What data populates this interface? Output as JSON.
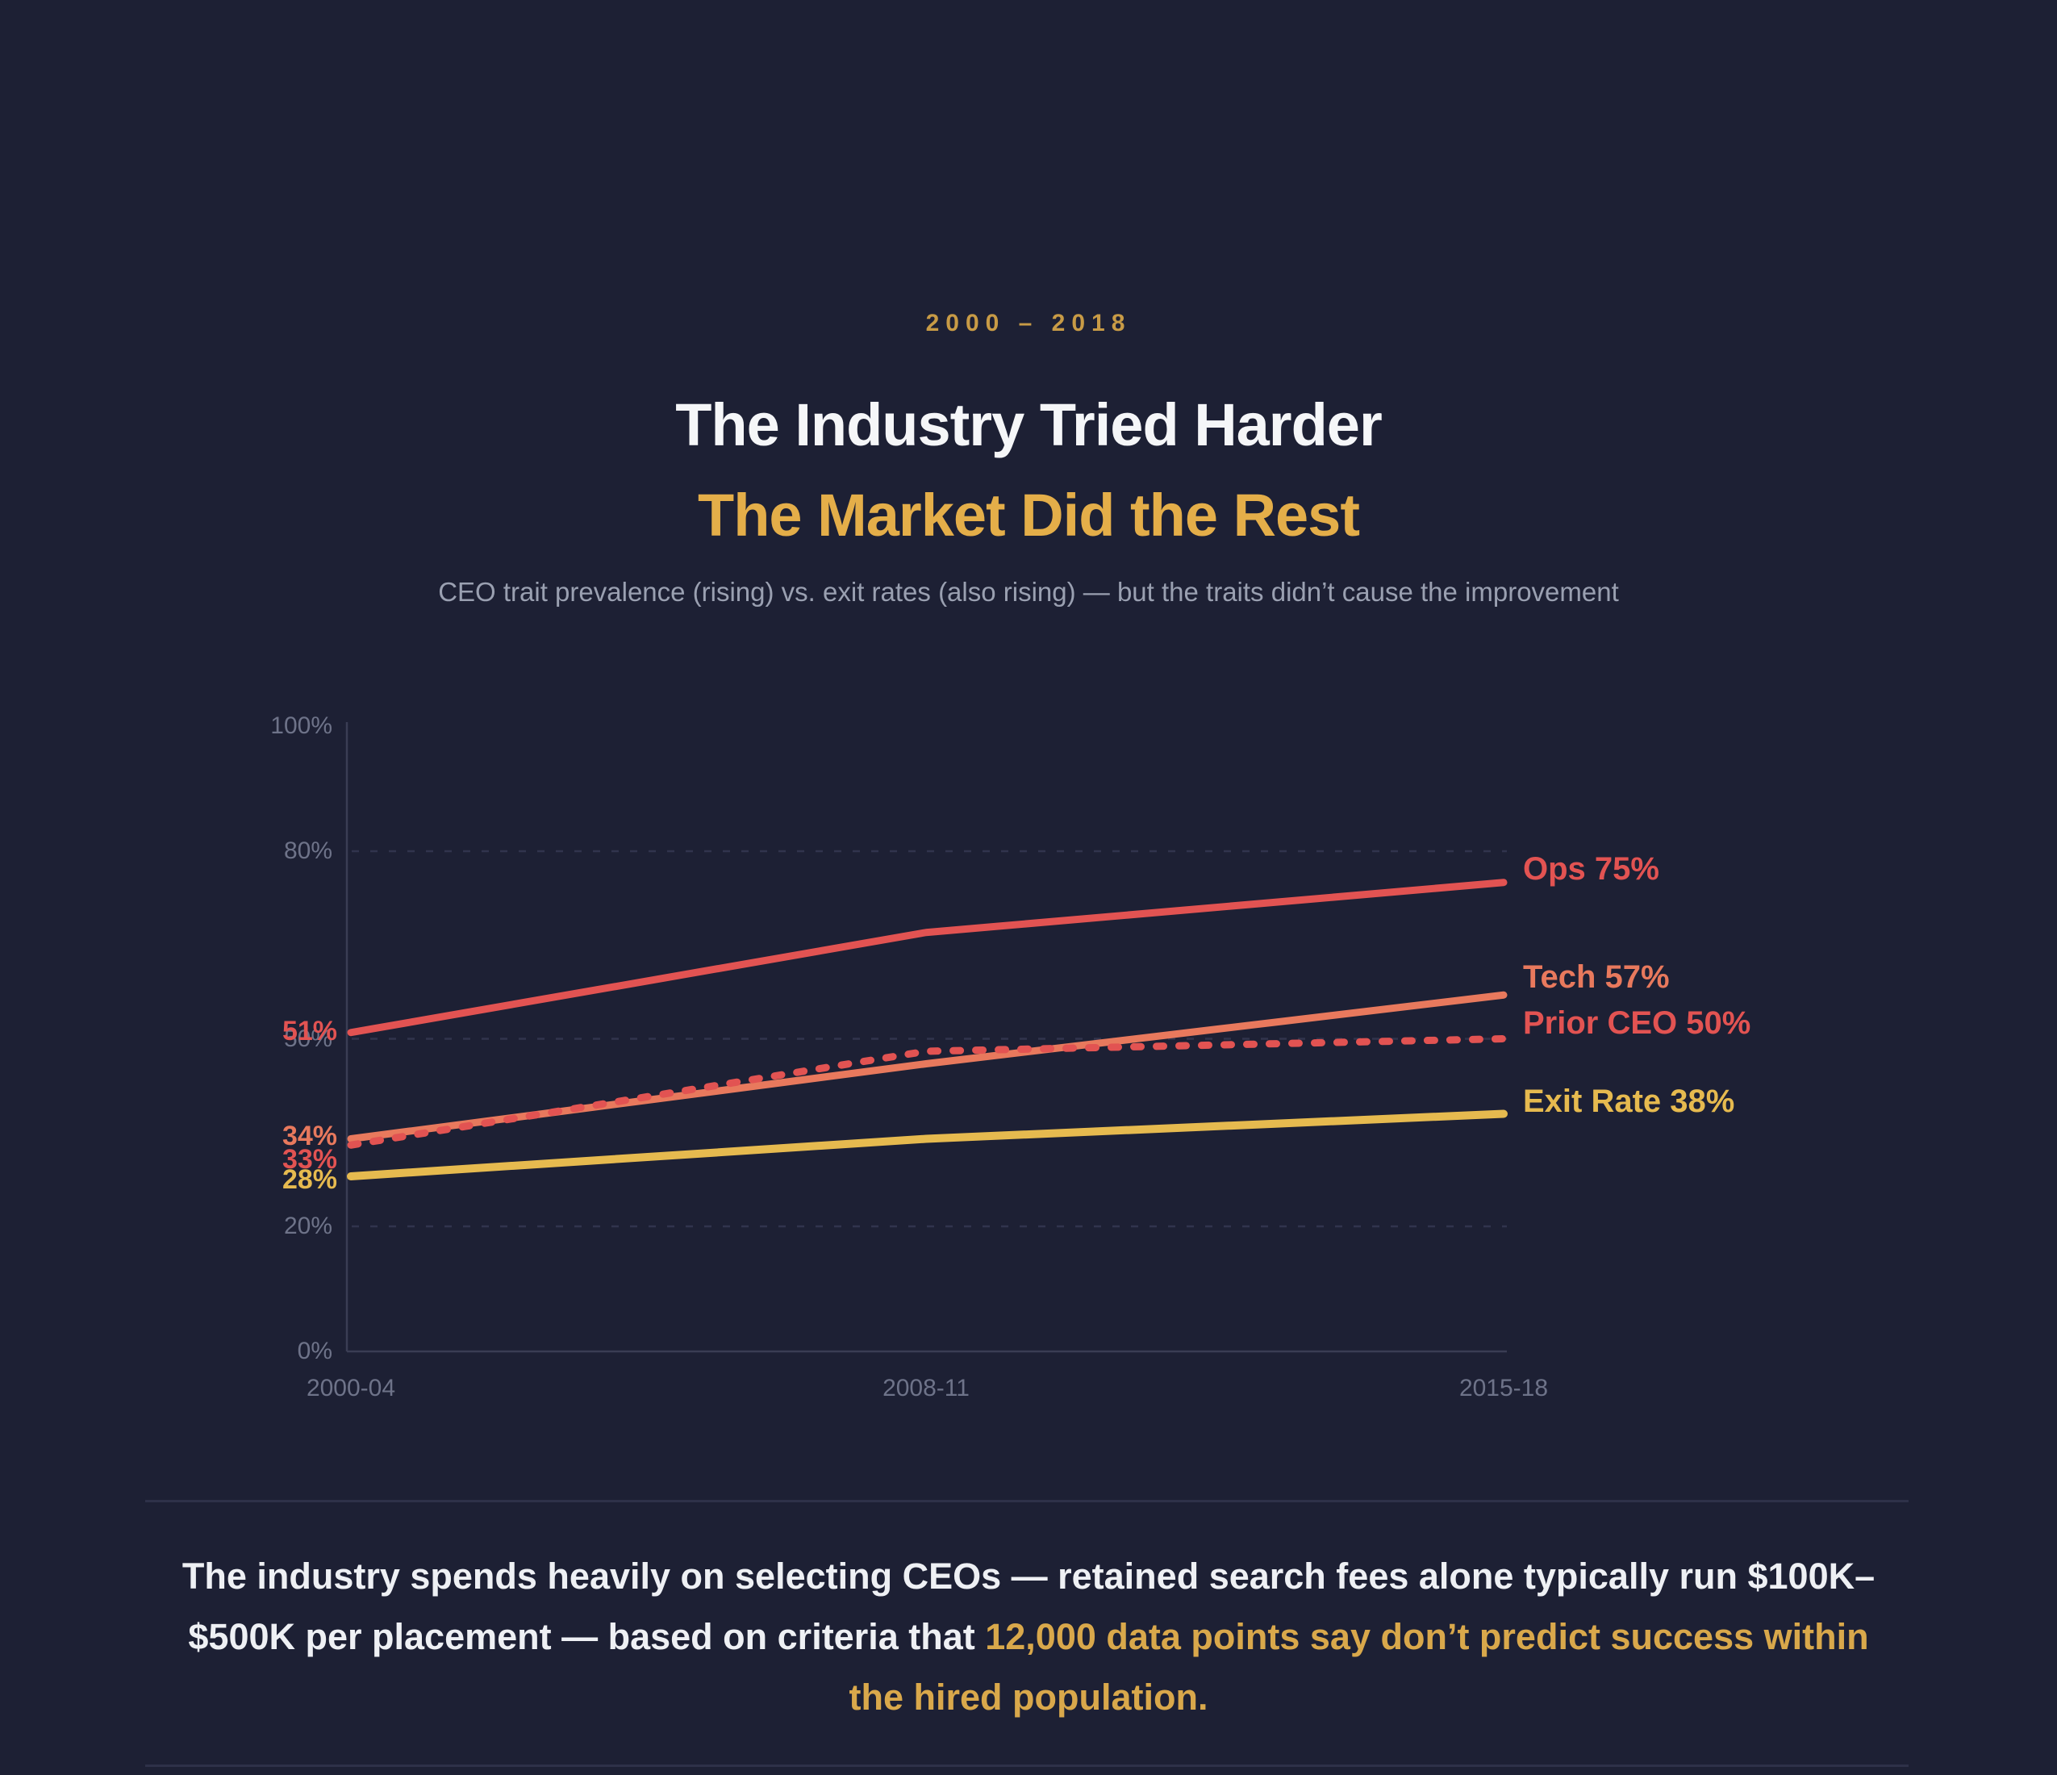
{
  "header": {
    "eyebrow": "2000 – 2018",
    "title_line1": "The Industry Tried Harder",
    "title_line2": "The Market Did the Rest",
    "subtitle": "CEO trait prevalence (rising) vs. exit rates (also rising) — but the traits didn’t cause the improvement"
  },
  "chart_data": {
    "type": "line",
    "categories": [
      "2000-04",
      "2008-11",
      "2015-18"
    ],
    "ylim": [
      0,
      100
    ],
    "y_tick_labels": [
      "100%",
      "80%",
      "50%",
      "20%",
      "0%"
    ],
    "y_tick_values": [
      100,
      80,
      50,
      20,
      0
    ],
    "gridline_values": [
      80,
      50,
      20
    ],
    "grid": "dashed horizontal gridlines",
    "legend_position": "inline right edge labels",
    "series": [
      {
        "id": "tech",
        "name": "Tech",
        "values": [
          34,
          46,
          57
        ],
        "color": "#e8795d",
        "style": "solid",
        "start_label": "34%",
        "end_label": "Tech 57%"
      },
      {
        "id": "prior_ceo",
        "name": "Prior CEO",
        "values": [
          33,
          48,
          50
        ],
        "color": "#e25352",
        "style": "dashed",
        "start_label": "33%",
        "end_label": "Prior CEO 50%"
      },
      {
        "id": "ops",
        "name": "Ops",
        "values": [
          51,
          67,
          75
        ],
        "color": "#e25352",
        "style": "solid",
        "start_label": "51%",
        "end_label": "Ops 75%"
      },
      {
        "id": "exit_rate",
        "name": "Exit Rate",
        "values": [
          28,
          34,
          38
        ],
        "color": "#e6ba4f",
        "style": "solid",
        "start_label": "28%",
        "end_label": "Exit Rate 38%"
      }
    ],
    "colors": {
      "axis": "#3a3d54",
      "gridline": "#31344d",
      "tick_label": "#6e7389"
    }
  },
  "footer": {
    "text_white": "The industry spends heavily on selecting CEOs — retained search fees alone typically run $100K–$500K per placement — based on criteria that ",
    "text_gold": "12,000 data points say don’t predict success within the hired population."
  }
}
